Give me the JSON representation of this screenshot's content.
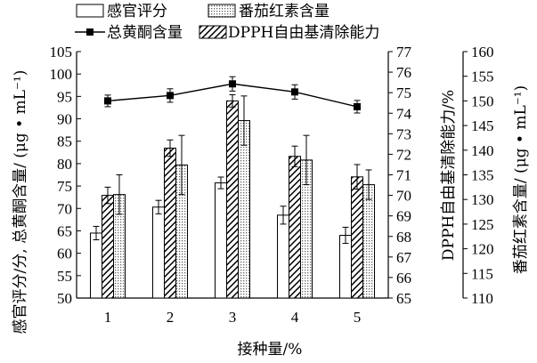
{
  "chart_data": {
    "type": "bar",
    "xlabel": "接种量/%",
    "categories": [
      "1",
      "2",
      "3",
      "4",
      "5"
    ],
    "axes": {
      "left": {
        "label": "感官评分/分, 总黄酮含量/ (μg • mL⁻¹)",
        "ylim": [
          50,
          105
        ],
        "ticks": [
          "50",
          "55",
          "60",
          "65",
          "70",
          "75",
          "80",
          "85",
          "90",
          "95",
          "100",
          "105"
        ]
      },
      "right1": {
        "label": "DPPH自由基清除能力/%",
        "ylim": [
          65,
          77
        ],
        "ticks": [
          "65",
          "66",
          "67",
          "68",
          "69",
          "70",
          "71",
          "72",
          "73",
          "74",
          "75",
          "76",
          "77"
        ]
      },
      "right2": {
        "label": "番茄红素含量/ (μg • mL⁻¹)",
        "ylim": [
          110,
          160
        ],
        "ticks": [
          "110",
          "115",
          "120",
          "125",
          "130",
          "135",
          "140",
          "145",
          "150",
          "155",
          "160"
        ]
      }
    },
    "series": [
      {
        "name": "感官评分",
        "kind": "bar",
        "axis": "left",
        "pattern": "white",
        "values": [
          64.5,
          70.3,
          75.7,
          68.5,
          64.0
        ],
        "errors": [
          1.5,
          1.5,
          1.3,
          2.0,
          1.8
        ]
      },
      {
        "name": "DPPH自由基清除能力",
        "kind": "bar",
        "axis": "right1",
        "pattern": "hatch",
        "values": [
          70.0,
          72.3,
          74.6,
          71.9,
          70.9
        ],
        "errors": [
          0.4,
          0.4,
          0.3,
          0.5,
          0.6
        ]
      },
      {
        "name": "番茄红素含量",
        "kind": "bar",
        "axis": "right2",
        "pattern": "dots",
        "values": [
          131,
          137,
          146,
          138,
          133
        ],
        "errors": [
          4,
          6,
          5,
          5,
          3
        ]
      },
      {
        "name": "总黄酮含量",
        "kind": "line",
        "axis": "left",
        "values": [
          94.0,
          95.2,
          97.8,
          96.0,
          92.7
        ],
        "errors": [
          1.3,
          1.5,
          1.6,
          1.6,
          1.4
        ]
      }
    ],
    "legend": {
      "placement": "top",
      "entries": [
        {
          "label": "感官评分",
          "symbol": "white-box"
        },
        {
          "label": "番茄红素含量",
          "symbol": "dots-box"
        },
        {
          "label": "总黄酮含量",
          "symbol": "line-square"
        },
        {
          "label": "DPPH自由基清除能力",
          "symbol": "hatch-box"
        }
      ]
    },
    "grid": false
  },
  "colors": {
    "line": "#000000",
    "bar_edge": "#000000",
    "white_fill": "#ffffff",
    "dots": "#666666",
    "hatch": "#000000"
  }
}
